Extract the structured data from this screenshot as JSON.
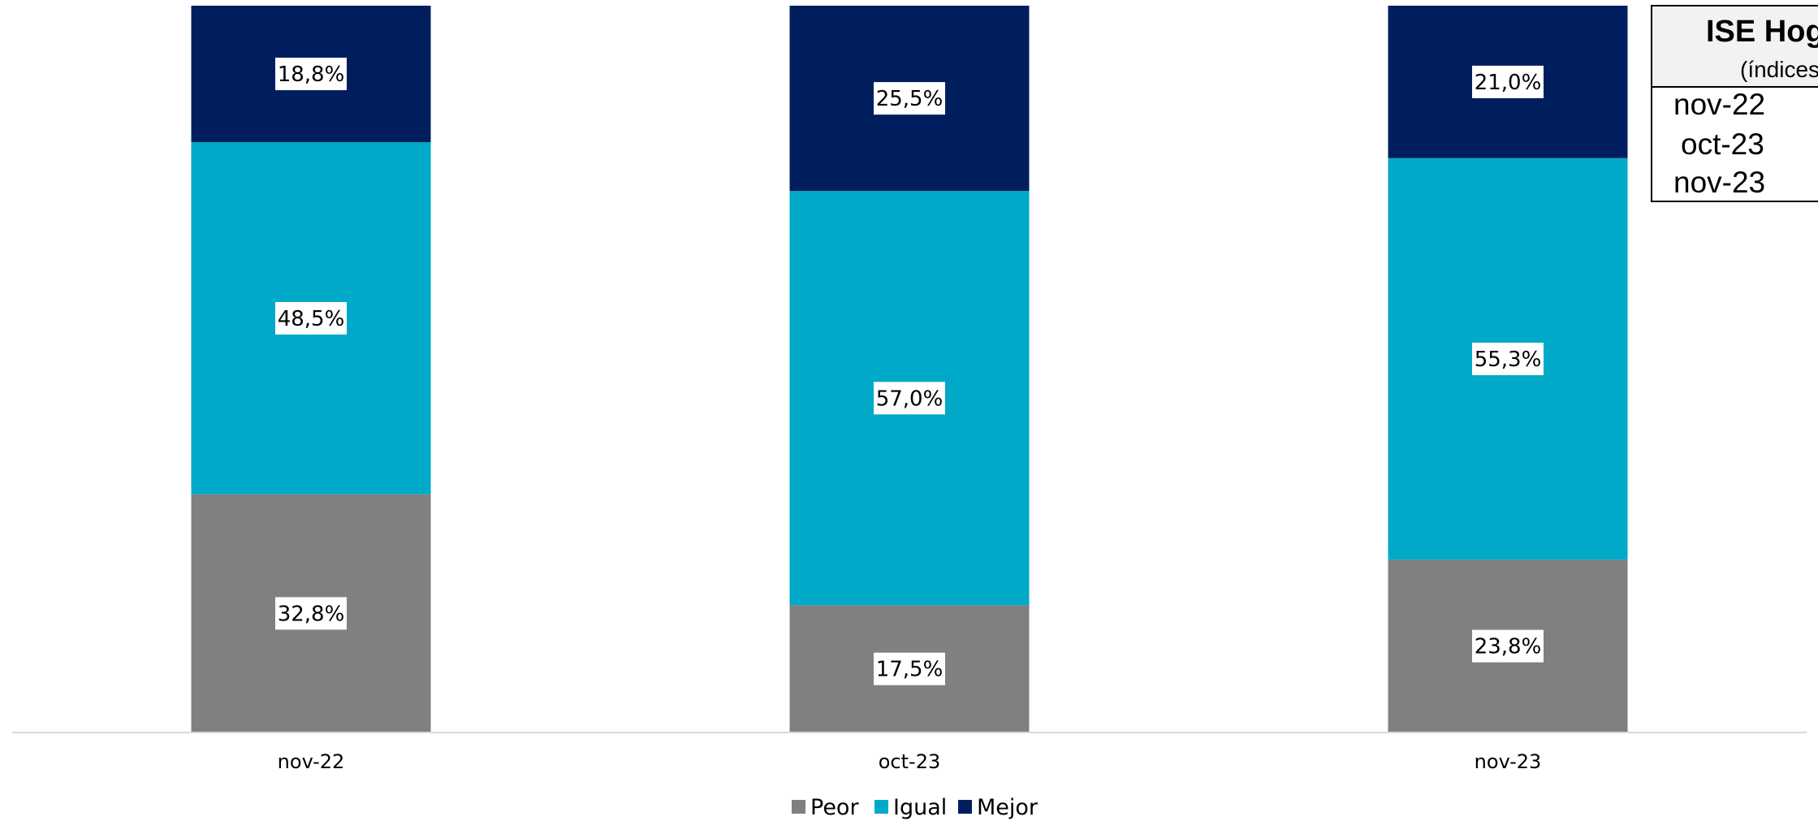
{
  "chart_data": {
    "type": "bar",
    "stacked": true,
    "percent": true,
    "categories": [
      "nov-22",
      "oct-23",
      "nov-23"
    ],
    "series": [
      {
        "name": "Peor",
        "color": "#808080",
        "values": [
          32.8,
          17.5,
          23.8
        ],
        "labels": [
          "32,8%",
          "17,5%",
          "23,8%"
        ]
      },
      {
        "name": "Igual",
        "color": "#00a9c7",
        "values": [
          48.5,
          57.0,
          55.3
        ],
        "labels": [
          "48,5%",
          "57,0%",
          "55,3%"
        ]
      },
      {
        "name": "Mejor",
        "color": "#001e5e",
        "values": [
          18.8,
          25.5,
          21.0
        ],
        "labels": [
          "18,8%",
          "25,5%",
          "21,0%"
        ]
      }
    ],
    "ylim": [
      0,
      100
    ],
    "grid": false,
    "legend_position": "bottom"
  },
  "side_table": {
    "title": "ISE Hog",
    "subtitle": "(índices)",
    "rows": [
      "nov-22",
      "oct-23",
      "nov-23"
    ]
  }
}
